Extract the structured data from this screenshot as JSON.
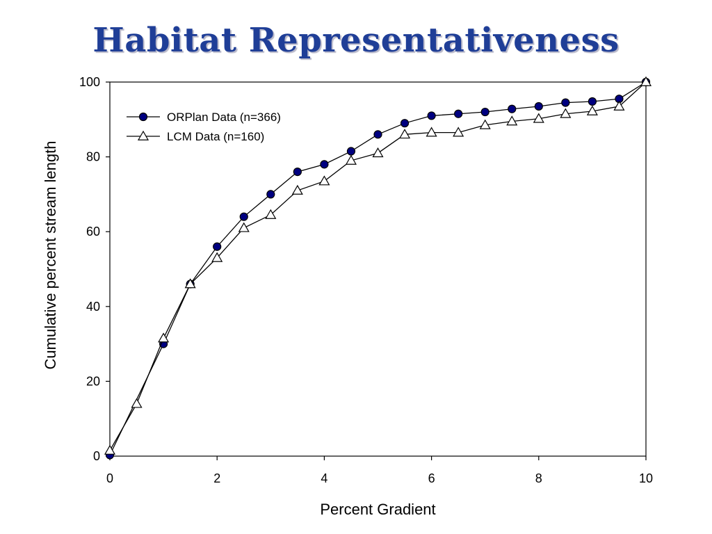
{
  "slide": {
    "title": "Habitat Representativeness"
  },
  "chart_data": {
    "type": "line",
    "title": "",
    "xlabel": "Percent Gradient",
    "ylabel": "Cumulative percent stream length",
    "xlim": [
      0,
      10
    ],
    "ylim": [
      0,
      100
    ],
    "xticks": [
      0,
      2,
      4,
      6,
      8,
      10
    ],
    "yticks": [
      0,
      20,
      40,
      60,
      80,
      100
    ],
    "grid": false,
    "legend_position": "top-left",
    "series": [
      {
        "name": "ORPlan Data (n=366)",
        "marker": "filled-circle",
        "color": "#000080",
        "x": [
          0,
          1,
          1.5,
          2,
          2.5,
          3,
          3.5,
          4,
          4.5,
          5,
          5.5,
          6,
          6.5,
          7,
          7.5,
          8,
          8.5,
          9,
          9.5,
          10
        ],
        "y": [
          0.3,
          30,
          46,
          56,
          64,
          70,
          76,
          78,
          81.5,
          86,
          89,
          91,
          91.5,
          92,
          92.8,
          93.5,
          94.5,
          94.8,
          95.5,
          100
        ]
      },
      {
        "name": "LCM Data (n=160)",
        "marker": "open-triangle",
        "color": "#ffffff",
        "x": [
          0,
          0.5,
          1,
          1.5,
          2,
          2.5,
          3,
          3.5,
          4,
          4.5,
          5,
          5.5,
          6,
          6.5,
          7,
          7.5,
          8,
          8.5,
          9,
          9.5,
          10
        ],
        "y": [
          1.5,
          14,
          31.5,
          46,
          53,
          61,
          64.5,
          71,
          73.5,
          79,
          81,
          86,
          86.5,
          86.5,
          88.5,
          89.5,
          90.2,
          91.5,
          92.2,
          93.5,
          100
        ]
      }
    ]
  }
}
